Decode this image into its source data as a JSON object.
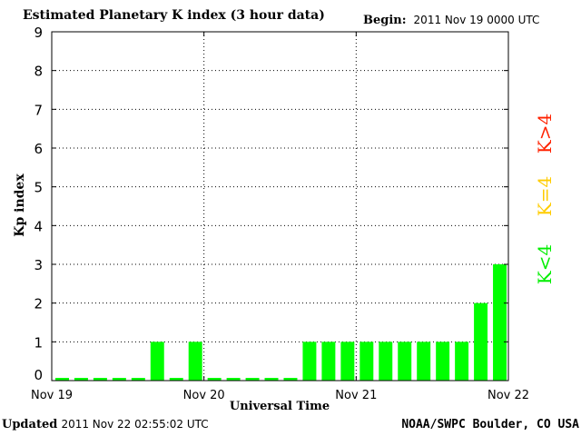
{
  "header": {
    "title": "Estimated Planetary K index (3 hour data)",
    "begin_label": "Begin:",
    "begin_value": "2011 Nov 19 0000 UTC"
  },
  "legend": {
    "high": {
      "label": "K>4",
      "color": "#ff2200"
    },
    "equal": {
      "label": "K=4",
      "color": "#ffcc00"
    },
    "low": {
      "label": "K<4",
      "color": "#00ee00"
    }
  },
  "footer": {
    "updated_prefix": "Updated",
    "updated_time": "2011 Nov 22 02:55:02 UTC",
    "source": "NOAA/SWPC Boulder, CO USA"
  },
  "chart_data": {
    "type": "bar",
    "title": "Estimated Planetary K index (3 hour data)",
    "xlabel": "Universal Time",
    "ylabel": "Kp index",
    "ylim": [
      0,
      9
    ],
    "yticks": [
      "0",
      "1",
      "2",
      "3",
      "4",
      "5",
      "6",
      "7",
      "8",
      "9"
    ],
    "xticks": [
      "Nov 19",
      "Nov 20",
      "Nov 21",
      "Nov 22"
    ],
    "grid": true,
    "bar_color": "#00ff00",
    "values": [
      0,
      0,
      0,
      0,
      0,
      1,
      0,
      1,
      0,
      0,
      0,
      0,
      0,
      1,
      1,
      1,
      1,
      1,
      1,
      1,
      1,
      1,
      2,
      3
    ]
  }
}
